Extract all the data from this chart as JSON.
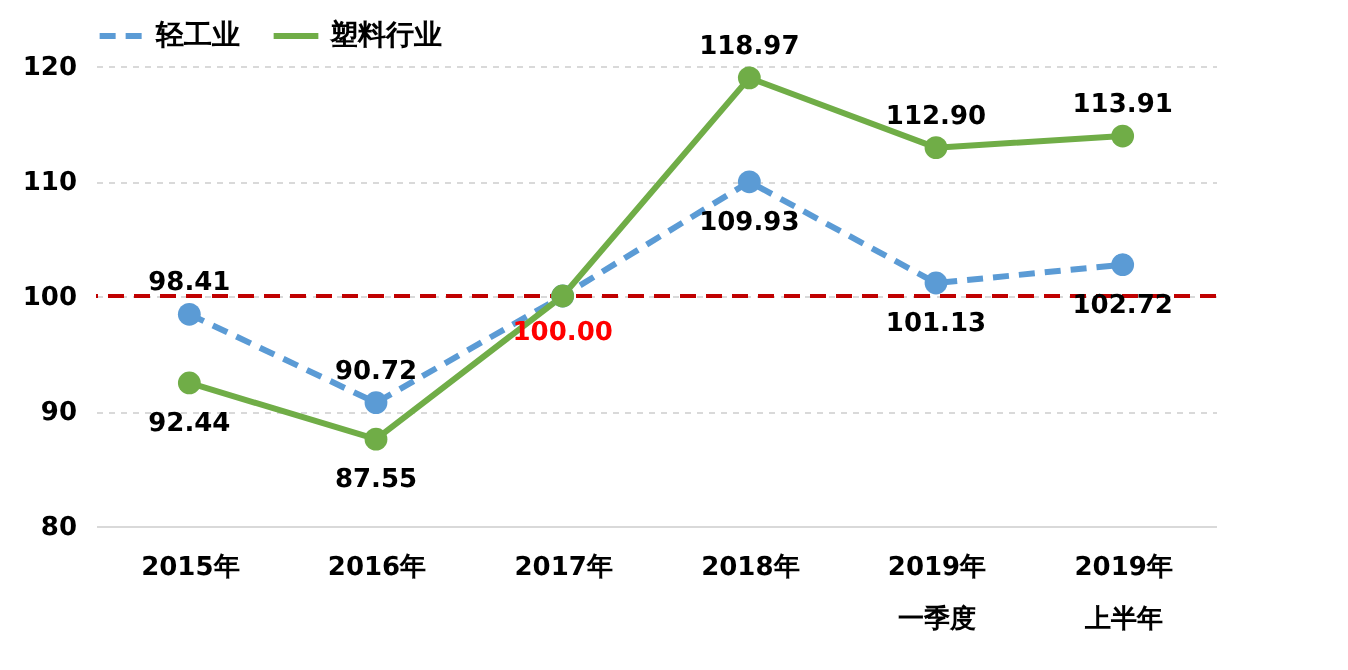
{
  "chart_data": {
    "type": "line",
    "categories": [
      "2015年",
      "2016年",
      "2017年",
      "2018年",
      "2019年一季度",
      "2019年上半年"
    ],
    "series": [
      {
        "name": "轻工业",
        "color": "#5b9bd5",
        "line_style": "dashed",
        "marker": "circle",
        "values": [
          98.41,
          90.72,
          100.0,
          109.93,
          101.13,
          102.72
        ],
        "value_labels": [
          "98.41",
          "90.72",
          null,
          "109.93",
          "101.13",
          "102.72"
        ]
      },
      {
        "name": "塑料行业",
        "color": "#70ad47",
        "line_style": "solid",
        "marker": "circle",
        "values": [
          92.44,
          87.55,
          100.0,
          118.97,
          112.9,
          113.91
        ],
        "value_labels": [
          "92.44",
          "87.55",
          null,
          "118.97",
          "112.90",
          "113.91"
        ]
      }
    ],
    "ylim": [
      80,
      120
    ],
    "yticks": [
      80,
      90,
      100,
      110,
      120
    ],
    "grid": "y",
    "legend": "top left",
    "ref_lines": [
      {
        "axis": "y",
        "value": 100,
        "color": "#c00000",
        "line_style": "dashed"
      }
    ],
    "annotations": [
      {
        "text": "100.00",
        "x": "2017年",
        "y": 100
      }
    ]
  }
}
